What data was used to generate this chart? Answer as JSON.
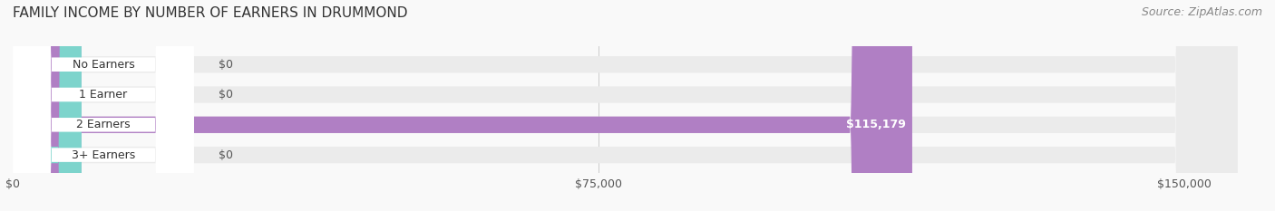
{
  "title": "FAMILY INCOME BY NUMBER OF EARNERS IN DRUMMOND",
  "source": "Source: ZipAtlas.com",
  "categories": [
    "No Earners",
    "1 Earner",
    "2 Earners",
    "3+ Earners"
  ],
  "values": [
    0,
    0,
    115179,
    0
  ],
  "bar_colors": [
    "#f4a0a0",
    "#a0b8e8",
    "#b07fc4",
    "#7dd4cc"
  ],
  "label_colors": [
    "#f4a0a0",
    "#a0b8e8",
    "#b07fc4",
    "#7dd4cc"
  ],
  "bar_bg_color": "#ebebeb",
  "value_labels": [
    "$0",
    "$0",
    "$115,179",
    "$0"
  ],
  "x_ticks": [
    0,
    75000,
    150000
  ],
  "x_tick_labels": [
    "$0",
    "$75,000",
    "$150,000"
  ],
  "xlim": [
    0,
    160000
  ],
  "background_color": "#f9f9f9",
  "title_fontsize": 11,
  "source_fontsize": 9
}
